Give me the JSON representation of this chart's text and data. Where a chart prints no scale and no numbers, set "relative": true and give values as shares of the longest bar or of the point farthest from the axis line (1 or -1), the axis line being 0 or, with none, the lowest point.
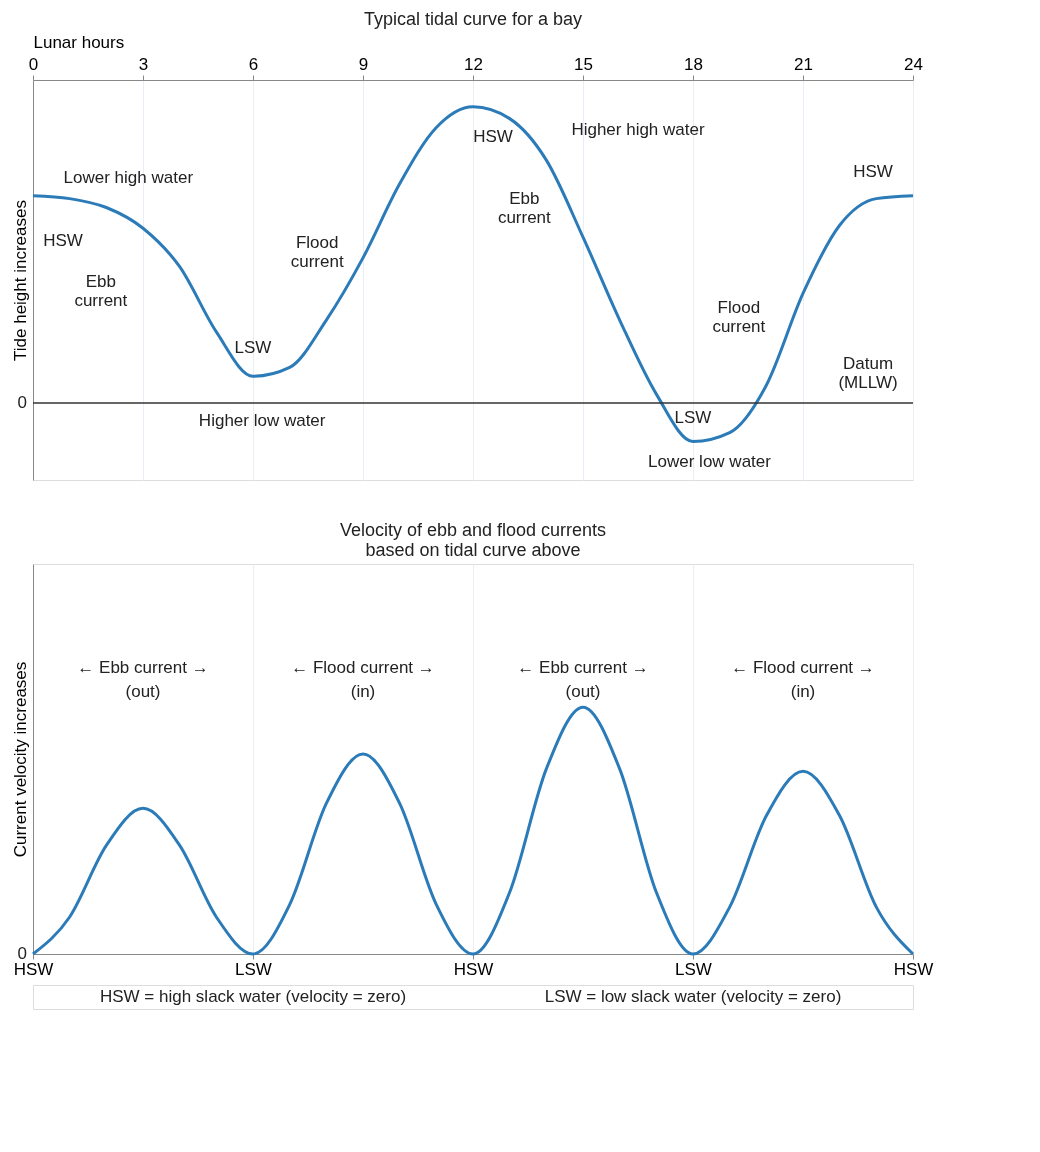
{
  "chart_data": [
    {
      "type": "line",
      "title": "Typical tidal curve for a bay",
      "xlabel": "Lunar hours",
      "ylabel": "Tide height increases",
      "relative": true,
      "x": [
        0,
        1,
        2,
        3,
        4,
        5,
        6,
        7,
        8,
        9,
        10,
        11,
        12,
        13,
        14,
        15,
        16,
        17,
        18,
        19,
        20,
        21,
        22,
        23,
        24
      ],
      "series": [
        {
          "color": "#2b7bb9",
          "values": [
            0.7,
            0.69,
            0.66,
            0.59,
            0.46,
            0.24,
            0.09,
            0.12,
            0.28,
            0.49,
            0.74,
            0.93,
            1.0,
            0.96,
            0.82,
            0.56,
            0.28,
            0.03,
            -0.13,
            -0.1,
            0.06,
            0.37,
            0.6,
            0.69,
            0.7
          ]
        }
      ],
      "xlim": [
        0,
        24
      ],
      "xticks": [
        0,
        3,
        6,
        9,
        12,
        15,
        18,
        21,
        24
      ],
      "grid": "x",
      "marker": "none",
      "line_style": "solid",
      "ref_lines": [
        {
          "axis": "y",
          "value": 0,
          "label": "Datum (MLLW)"
        }
      ],
      "annotations": [
        {
          "text": "HSW",
          "x": 0,
          "y": 0.7
        },
        {
          "text": "LSW",
          "x": 6,
          "y": 0.09
        },
        {
          "text": "HSW",
          "x": 12,
          "y": 1.0
        },
        {
          "text": "LSW",
          "x": 18,
          "y": -0.13
        },
        {
          "text": "HSW",
          "x": 24,
          "y": 0.7
        },
        "0",
        "Lower high water",
        "Ebb\ncurrent",
        "Higher low water",
        "Flood\ncurrent",
        "Higher high water",
        "Ebb\ncurrent",
        "Flood\ncurrent",
        "Lower low water"
      ]
    },
    {
      "type": "line",
      "title": "Velocity of ebb and flood currents\nbased on tidal curve above",
      "ylabel": "Current velocity increases",
      "relative": true,
      "categories": [
        "HSW",
        null,
        null,
        null,
        null,
        null,
        "LSW",
        null,
        null,
        null,
        null,
        null,
        "HSW",
        null,
        null,
        null,
        null,
        null,
        "LSW",
        null,
        null,
        null,
        null,
        null,
        "HSW"
      ],
      "series": [
        {
          "color": "#2b7bb9",
          "values": [
            0,
            0.15,
            0.44,
            0.59,
            0.44,
            0.15,
            0,
            0.2,
            0.61,
            0.81,
            0.61,
            0.2,
            0,
            0.25,
            0.75,
            1.0,
            0.75,
            0.25,
            0,
            0.19,
            0.56,
            0.74,
            0.56,
            0.19,
            0
          ]
        }
      ],
      "grid": "x",
      "marker": "none",
      "line_style": "solid",
      "annotations": [
        "0",
        "← Ebb current →",
        "(out)",
        "← Flood current →",
        "(in)",
        "← Ebb current →",
        "(out)",
        "← Flood current →",
        "(in)",
        "HSW = high slack water (velocity = zero)",
        "LSW = low slack water (velocity = zero)"
      ]
    }
  ]
}
